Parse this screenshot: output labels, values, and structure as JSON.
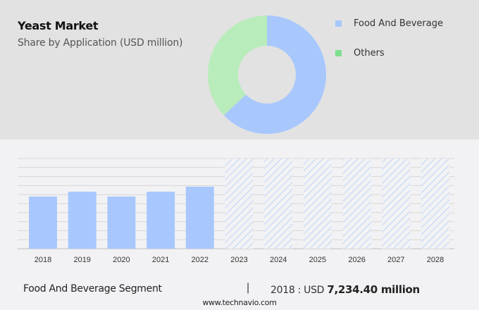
{
  "header": {
    "title": "Yeast Market",
    "subtitle": "Share by Application (USD million)"
  },
  "legend": [
    {
      "label": "Food And Beverage",
      "color": "#a8c8fd"
    },
    {
      "label": "Others",
      "color": "#7ee08f"
    }
  ],
  "footer_summary": {
    "segment": "Food And Beverage Segment",
    "separator": "|",
    "year_prefix": "2018 : USD ",
    "value": "7,234.40 million"
  },
  "source": "www.technavio.com",
  "colors": {
    "food_and_beverage": "#a8c8fd",
    "others": "#b9ecbb",
    "hatch": "#c3d6f7",
    "grid": "#d6d6d6"
  },
  "chart_data": [
    {
      "type": "pie",
      "title": "Yeast Market",
      "subtitle": "Share by Application (USD million)",
      "donut": true,
      "categories": [
        "Food And Beverage",
        "Others"
      ],
      "values": [
        63,
        37
      ],
      "legend_position": "right"
    },
    {
      "type": "bar",
      "title": "Food And Beverage Segment",
      "categories": [
        "2018",
        "2019",
        "2020",
        "2021",
        "2022",
        "2023",
        "2024",
        "2025",
        "2026",
        "2027",
        "2028"
      ],
      "values": [
        7234.4,
        7900,
        7234.4,
        7900,
        8600,
        null,
        null,
        null,
        null,
        null,
        null
      ],
      "forecast_years": [
        "2023",
        "2024",
        "2025",
        "2026",
        "2027",
        "2028"
      ],
      "annotation": "2018 : USD 7,234.40 million",
      "xlabel": "",
      "ylabel": "",
      "grid": true,
      "ylim": [
        0,
        12500
      ]
    }
  ]
}
